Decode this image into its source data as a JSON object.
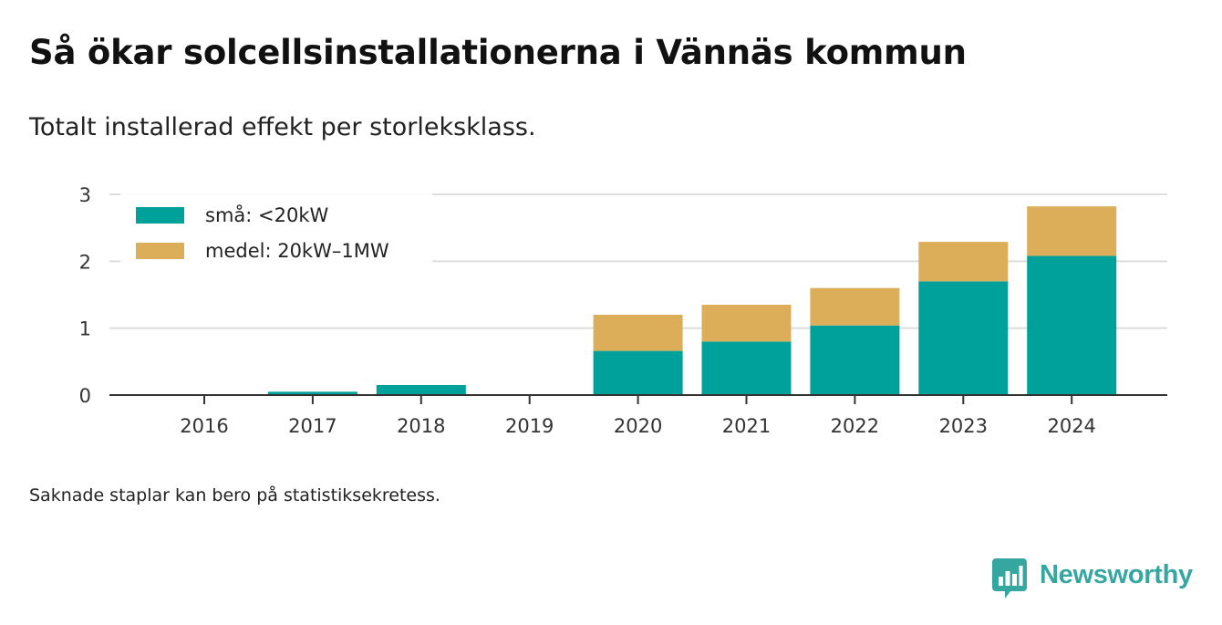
{
  "header": {
    "title": "Så ökar solcellsinstallationerna i Vännäs kommun",
    "subtitle": "Totalt installerad effekt per storleksklass."
  },
  "footnote": "Saknade staplar kan bero på statistiksekretess.",
  "brand": {
    "name": "Newsworthy",
    "icon": "newsworthy-logo-icon",
    "color": "#35a7a0"
  },
  "chart_data": {
    "type": "bar",
    "stacked": true,
    "categories": [
      "2016",
      "2017",
      "2018",
      "2019",
      "2020",
      "2021",
      "2022",
      "2023",
      "2024"
    ],
    "series": [
      {
        "name": "små: <20kW",
        "color": "#00a19a",
        "values": [
          0,
          0.05,
          0.15,
          0,
          0.66,
          0.8,
          1.04,
          1.7,
          2.08
        ]
      },
      {
        "name": "medel: 20kW–1MW",
        "color": "#dcae5a",
        "values": [
          0,
          0,
          0,
          0,
          0.54,
          0.55,
          0.56,
          0.59,
          0.74
        ]
      }
    ],
    "ylim": [
      0,
      3
    ],
    "yticks": [
      0,
      1,
      2,
      3
    ],
    "grid": true,
    "legend": "top-left"
  }
}
